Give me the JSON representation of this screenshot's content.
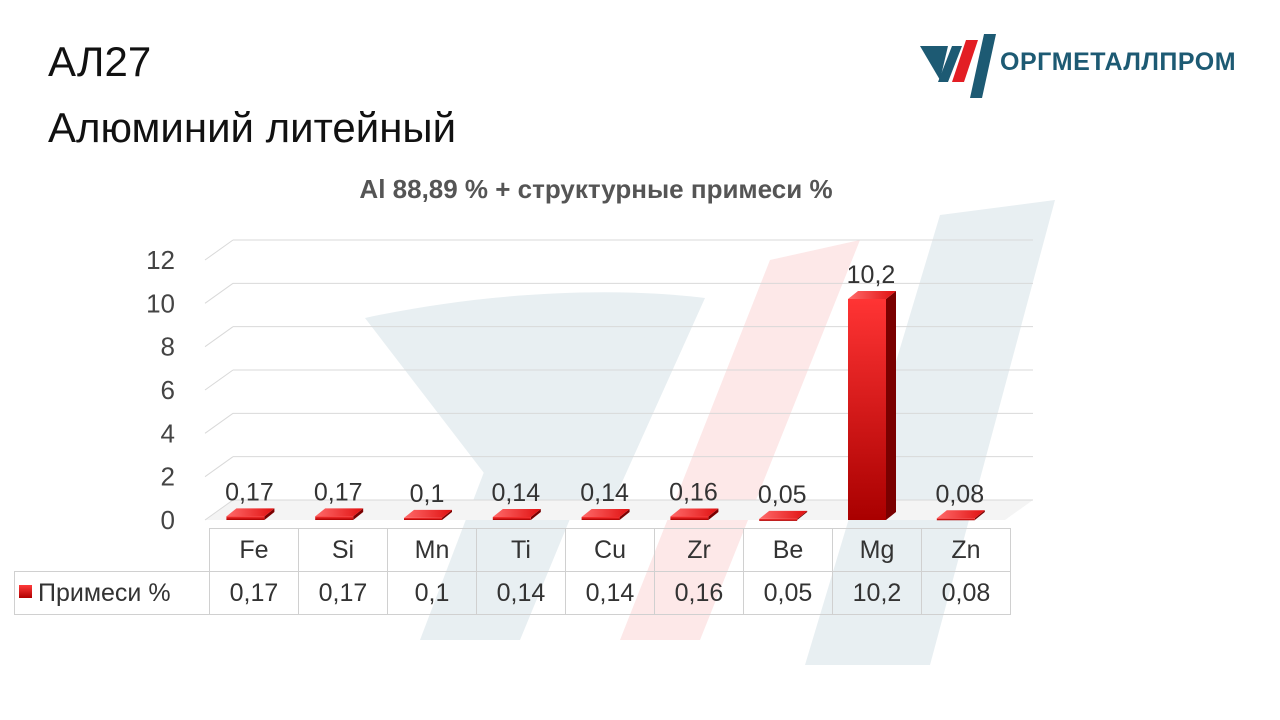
{
  "title": {
    "line1": "АЛ27",
    "line2": "Алюминий литейный"
  },
  "logo": {
    "text": "ОРГМЕТАЛЛПРОМ",
    "colors": {
      "teal": "#1d5a73",
      "red": "#e31e24"
    }
  },
  "chart_data": {
    "type": "bar",
    "title": "Al 88,89 % + структурные примеси %",
    "categories": [
      "Fe",
      "Si",
      "Mn",
      "Ti",
      "Cu",
      "Zr",
      "Be",
      "Mg",
      "Zn"
    ],
    "series": [
      {
        "name": "Примеси %",
        "values": [
          0.17,
          0.17,
          0.1,
          0.14,
          0.14,
          0.16,
          0.05,
          10.2,
          0.08
        ],
        "labels": [
          "0,17",
          "0,17",
          "0,1",
          "0,14",
          "0,14",
          "0,16",
          "0,05",
          "10,2",
          "0,08"
        ],
        "color": "#e31e24"
      }
    ],
    "ylim": [
      0,
      12
    ],
    "yticks": [
      "0",
      "2",
      "4",
      "6",
      "8",
      "10",
      "12"
    ],
    "grid": true,
    "legend": "left of data table",
    "style": "3d-column"
  }
}
